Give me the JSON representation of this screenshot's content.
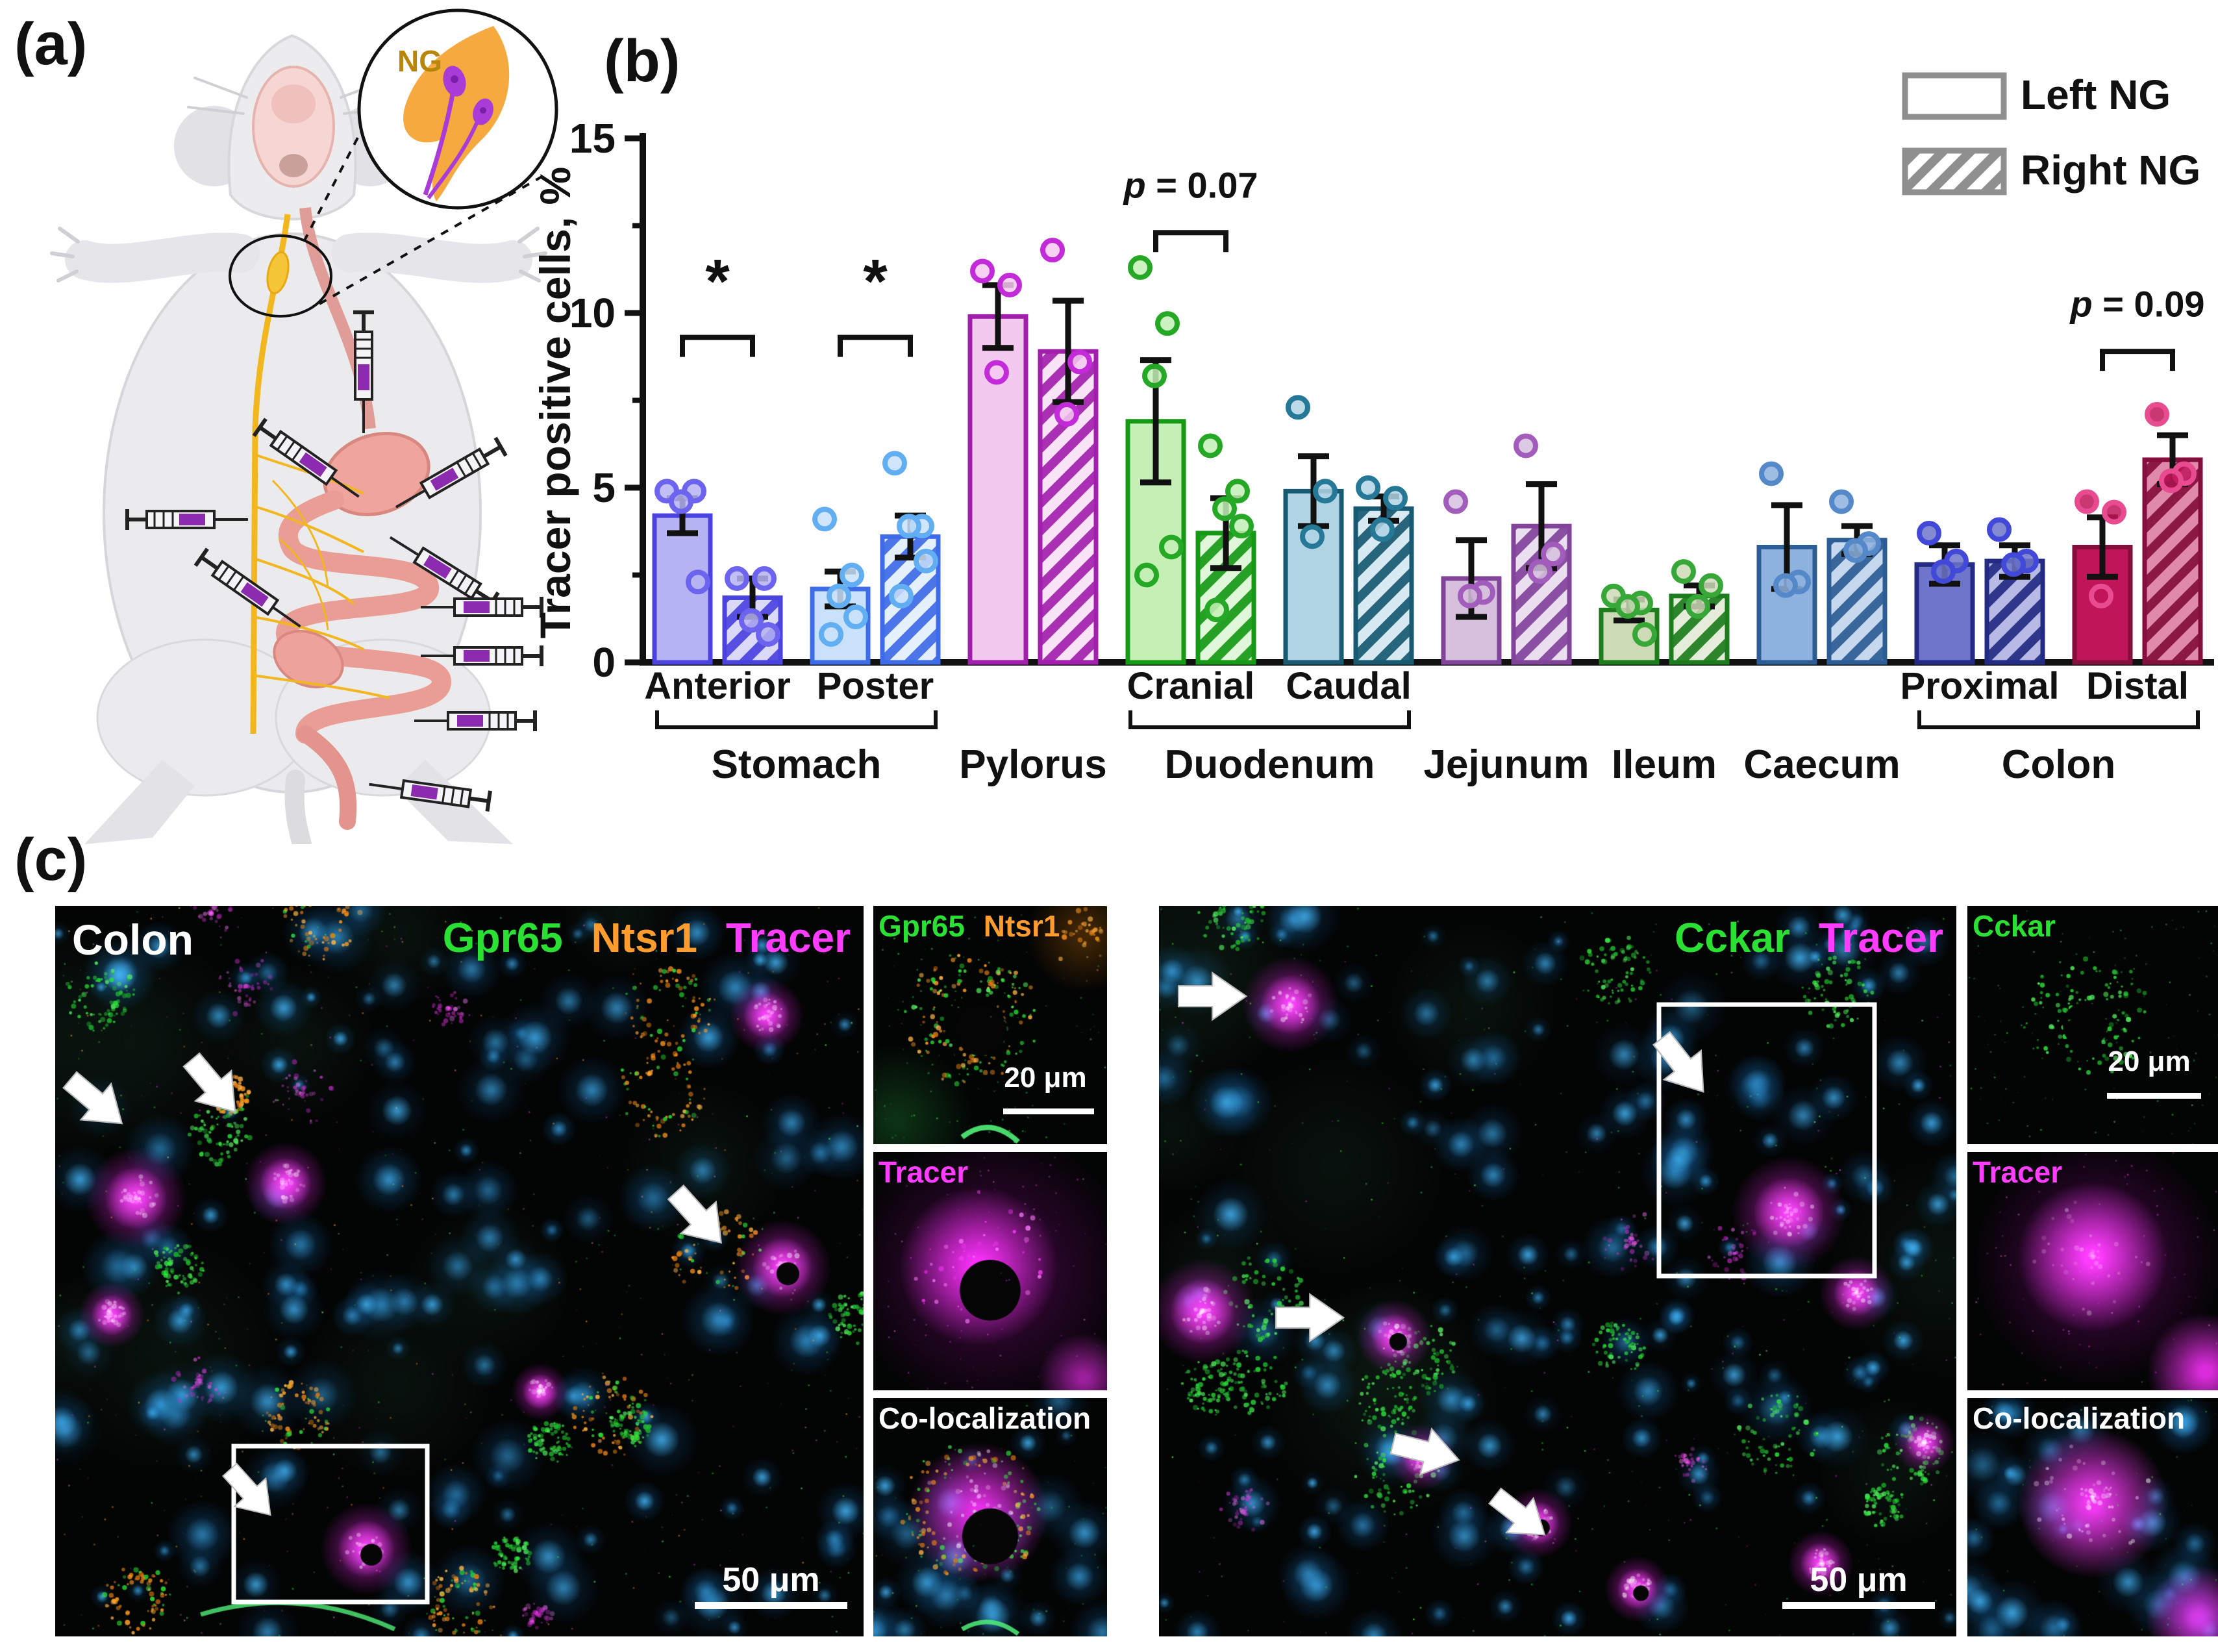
{
  "panels": {
    "a_label": "(a)",
    "b_label": "(b)",
    "c_label": "(c)"
  },
  "panel_a": {
    "inset_label": "NG"
  },
  "chart_data": {
    "type": "bar",
    "title": "",
    "ylabel": "Tracer positive cells, %",
    "ylim": [
      0,
      15
    ],
    "yticks": [
      0,
      5,
      10,
      15
    ],
    "minor_yticks": [
      2.5,
      7.5,
      12.5
    ],
    "grid": false,
    "legend_position": "top-right",
    "legend": [
      {
        "label": "Left NG",
        "pattern": "solid"
      },
      {
        "label": "Right NG",
        "pattern": "hatched"
      }
    ],
    "groups": [
      {
        "key": "anterior",
        "sub_label": "Anterior",
        "fill": "#b5b3f2",
        "stroke": "#4b43e0",
        "point": "#6c63ee",
        "left": {
          "mean": 4.2,
          "sem": 0.5,
          "points": [
            4.9,
            4.9,
            4.6,
            2.3
          ]
        },
        "right": {
          "mean": 1.85,
          "sem": 0.55,
          "points": [
            2.4,
            2.4,
            1.2,
            0.8
          ]
        }
      },
      {
        "key": "poster",
        "sub_label": "Poster",
        "fill": "#c9e1fa",
        "stroke": "#3e6be8",
        "point": "#62aef2",
        "left": {
          "mean": 2.1,
          "sem": 0.5,
          "points": [
            4.1,
            2.5,
            1.9,
            1.3,
            0.8
          ]
        },
        "right": {
          "mean": 3.6,
          "sem": 0.6,
          "points": [
            5.7,
            3.9,
            3.9,
            2.9,
            1.9
          ]
        }
      },
      {
        "key": "pylorus",
        "sub_label": "",
        "fill": "#f4c9f0",
        "stroke": "#a21fae",
        "point": "#c32ad8",
        "left": {
          "mean": 9.9,
          "sem": 0.9,
          "points": [
            11.2,
            10.8,
            8.3
          ]
        },
        "right": {
          "mean": 8.9,
          "sem": 1.45,
          "points": [
            11.8,
            8.6,
            7.1
          ]
        }
      },
      {
        "key": "cranial",
        "sub_label": "Cranial",
        "fill": "#c4f0b6",
        "stroke": "#169a16",
        "point": "#25a825",
        "left": {
          "mean": 6.9,
          "sem": 1.75,
          "points": [
            11.3,
            9.7,
            8.2,
            3.3,
            2.5
          ]
        },
        "right": {
          "mean": 3.7,
          "sem": 1.0,
          "points": [
            6.2,
            4.9,
            4.4,
            3.9,
            1.5
          ]
        }
      },
      {
        "key": "caudal",
        "sub_label": "Caudal",
        "fill": "#b0d4e4",
        "stroke": "#175a72",
        "point": "#257996",
        "left": {
          "mean": 4.9,
          "sem": 1.0,
          "points": [
            7.3,
            4.9,
            3.6
          ]
        },
        "right": {
          "mean": 4.4,
          "sem": 0.35,
          "points": [
            5.0,
            4.7,
            3.8
          ]
        }
      },
      {
        "key": "jejunum",
        "sub_label": "",
        "fill": "#d6c0de",
        "stroke": "#82439b",
        "point": "#a25cbb",
        "left": {
          "mean": 2.4,
          "sem": 1.1,
          "points": [
            4.6,
            2.0,
            1.9
          ]
        },
        "right": {
          "mean": 3.9,
          "sem": 1.2,
          "points": [
            6.2,
            3.1,
            2.6
          ]
        }
      },
      {
        "key": "ileum",
        "sub_label": "",
        "fill": "#ccdab6",
        "stroke": "#1d7d1d",
        "point": "#37a837",
        "left": {
          "mean": 1.5,
          "sem": 0.3,
          "points": [
            1.9,
            1.7,
            1.6,
            0.8
          ]
        },
        "right": {
          "mean": 1.9,
          "sem": 0.3,
          "points": [
            2.6,
            2.2,
            1.6
          ]
        }
      },
      {
        "key": "caecum",
        "sub_label": "",
        "fill": "#8db2de",
        "stroke": "#2d5d95",
        "point": "#5588c8",
        "left": {
          "mean": 3.3,
          "sem": 1.2,
          "points": [
            5.4,
            2.3,
            2.2
          ]
        },
        "right": {
          "mean": 3.5,
          "sem": 0.4,
          "points": [
            4.6,
            3.4,
            3.2
          ]
        }
      },
      {
        "key": "proximal",
        "sub_label": "Proximal",
        "fill": "#6d76ca",
        "stroke": "#242b84",
        "point": "#4248d8",
        "left": {
          "mean": 2.8,
          "sem": 0.55,
          "points": [
            3.7,
            2.9,
            2.6
          ]
        },
        "right": {
          "mean": 2.9,
          "sem": 0.45,
          "points": [
            3.8,
            2.9,
            2.8
          ]
        }
      },
      {
        "key": "distal",
        "sub_label": "Distal",
        "fill": "#c01558",
        "stroke": "#850f3c",
        "point": "#e84b8f",
        "left": {
          "mean": 3.3,
          "sem": 0.85,
          "points": [
            4.6,
            4.3,
            1.9
          ]
        },
        "right": {
          "mean": 5.8,
          "sem": 0.7,
          "points": [
            7.1,
            5.4,
            5.2
          ]
        }
      }
    ],
    "significance": [
      {
        "group": "anterior",
        "text": "*",
        "bracket_y": 9.3,
        "text_y": 10.3
      },
      {
        "group": "poster",
        "text": "*",
        "bracket_y": 9.3,
        "text_y": 10.3
      },
      {
        "group": "cranial",
        "text": "p = 0.07",
        "bracket_y": 12.3,
        "text_y": 13.3
      },
      {
        "group": "distal",
        "text": "p = 0.09",
        "bracket_y": 8.9,
        "text_y": 9.9
      }
    ],
    "organ_labels": [
      {
        "label": "Stomach",
        "span": [
          "anterior",
          "poster"
        ],
        "bracket": true
      },
      {
        "label": "Pylorus",
        "span": [
          "pylorus"
        ],
        "bracket": false
      },
      {
        "label": "Duodenum",
        "span": [
          "cranial",
          "caudal"
        ],
        "bracket": true
      },
      {
        "label": "Jejunum",
        "span": [
          "jejunum"
        ],
        "bracket": false
      },
      {
        "label": "Ileum",
        "span": [
          "ileum"
        ],
        "bracket": false
      },
      {
        "label": "Caecum",
        "span": [
          "caecum"
        ],
        "bracket": false
      },
      {
        "label": "Colon",
        "span": [
          "proximal",
          "distal"
        ],
        "bracket": true
      }
    ]
  },
  "panel_c": {
    "left_main": {
      "title": "Colon",
      "markers": [
        {
          "text": "Gpr65",
          "color": "#29e033"
        },
        {
          "text": "Ntsr1",
          "color": "#ff9c2e"
        },
        {
          "text": "Tracer",
          "color": "#ff3cff"
        }
      ],
      "scale_bar": "50 μm"
    },
    "left_insets": [
      {
        "labels": [
          {
            "text": "Gpr65",
            "color": "#29e033"
          },
          {
            "text": "Ntsr1",
            "color": "#ff9c2e"
          }
        ],
        "scale_bar": "20 μm"
      },
      {
        "labels": [
          {
            "text": "Tracer",
            "color": "#ff3cff"
          }
        ]
      },
      {
        "labels": [
          {
            "text": "Co-localization",
            "color": "#ffffff"
          }
        ]
      }
    ],
    "right_main": {
      "markers": [
        {
          "text": "Cckar",
          "color": "#29e033"
        },
        {
          "text": "Tracer",
          "color": "#ff3cff"
        }
      ],
      "scale_bar": "50 μm"
    },
    "right_insets": [
      {
        "labels": [
          {
            "text": "Cckar",
            "color": "#29e033"
          }
        ],
        "scale_bar": "20 μm"
      },
      {
        "labels": [
          {
            "text": "Tracer",
            "color": "#ff3cff"
          }
        ]
      },
      {
        "labels": [
          {
            "text": "Co-localization",
            "color": "#ffffff"
          }
        ]
      }
    ]
  }
}
